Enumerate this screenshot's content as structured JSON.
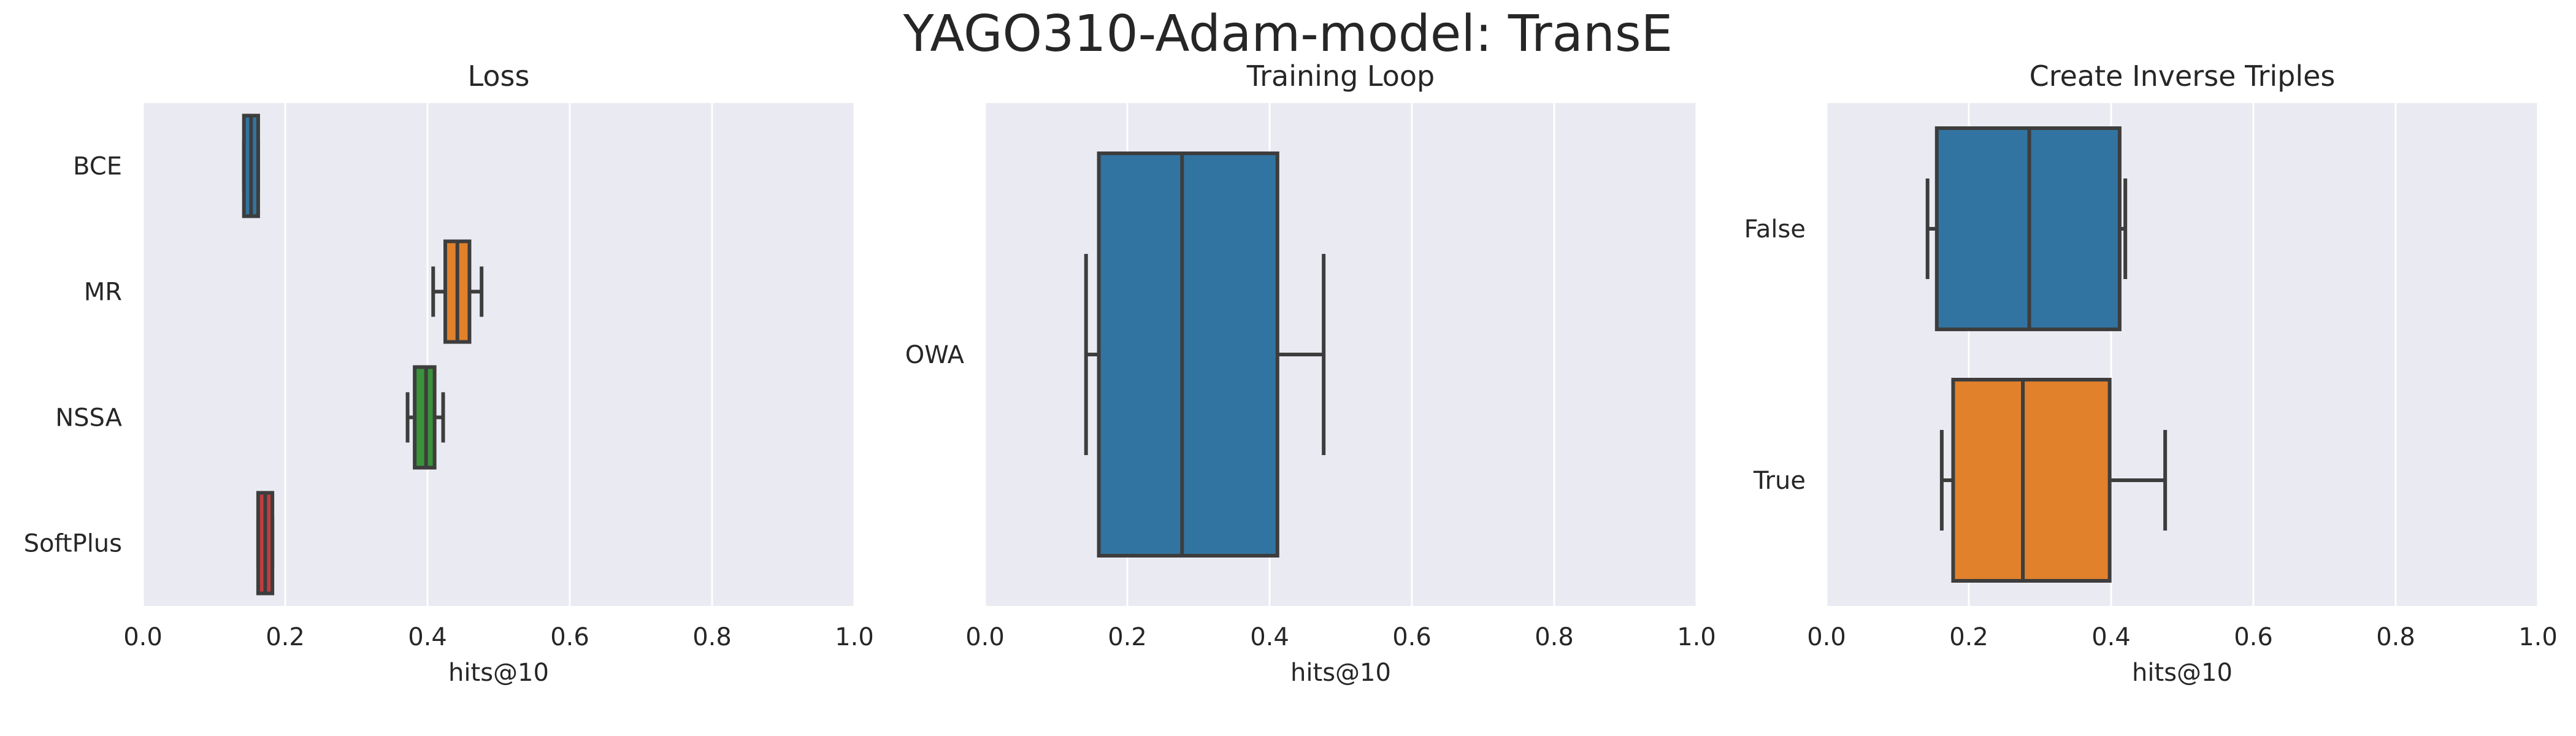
{
  "figure_title": "YAGO310-Adam-model: TransE",
  "chart_data": [
    {
      "type": "box",
      "title": "Loss",
      "xlabel": "hits@10",
      "ylabel": "",
      "xlim": [
        0,
        1
      ],
      "xticks": [
        "0.0",
        "0.2",
        "0.4",
        "0.6",
        "0.8",
        "1.0"
      ],
      "grid": true,
      "categories": [
        "BCE",
        "MR",
        "NSSA",
        "SoftPlus"
      ],
      "boxes": [
        {
          "category": "BCE",
          "whisker_low": 0.142,
          "q1": 0.142,
          "median": 0.152,
          "q3": 0.162,
          "whisker_high": 0.162,
          "color": "#3274a1"
        },
        {
          "category": "MR",
          "whisker_low": 0.408,
          "q1": 0.425,
          "median": 0.442,
          "q3": 0.459,
          "whisker_high": 0.476,
          "color": "#e1812c"
        },
        {
          "category": "NSSA",
          "whisker_low": 0.372,
          "q1": 0.382,
          "median": 0.398,
          "q3": 0.41,
          "whisker_high": 0.422,
          "color": "#3a923a"
        },
        {
          "category": "SoftPlus",
          "whisker_low": 0.162,
          "q1": 0.162,
          "median": 0.172,
          "q3": 0.182,
          "whisker_high": 0.182,
          "color": "#c03d3e"
        }
      ]
    },
    {
      "type": "box",
      "title": "Training Loop",
      "xlabel": "hits@10",
      "ylabel": "",
      "xlim": [
        0,
        1
      ],
      "xticks": [
        "0.0",
        "0.2",
        "0.4",
        "0.6",
        "0.8",
        "1.0"
      ],
      "grid": true,
      "categories": [
        "OWA"
      ],
      "boxes": [
        {
          "category": "OWA",
          "whisker_low": 0.142,
          "q1": 0.16,
          "median": 0.277,
          "q3": 0.411,
          "whisker_high": 0.476,
          "color": "#3274a1"
        }
      ]
    },
    {
      "type": "box",
      "title": "Create Inverse Triples",
      "xlabel": "hits@10",
      "ylabel": "",
      "xlim": [
        0,
        1
      ],
      "xticks": [
        "0.0",
        "0.2",
        "0.4",
        "0.6",
        "0.8",
        "1.0"
      ],
      "grid": true,
      "categories": [
        "False",
        "True"
      ],
      "boxes": [
        {
          "category": "False",
          "whisker_low": 0.142,
          "q1": 0.155,
          "median": 0.285,
          "q3": 0.412,
          "whisker_high": 0.42,
          "color": "#3274a1"
        },
        {
          "category": "True",
          "whisker_low": 0.162,
          "q1": 0.178,
          "median": 0.276,
          "q3": 0.398,
          "whisker_high": 0.476,
          "color": "#e1812c"
        }
      ]
    }
  ]
}
